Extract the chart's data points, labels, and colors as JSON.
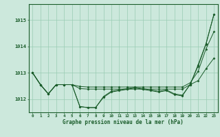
{
  "background_color": "#cce8dc",
  "plot_bg_color": "#cce8dc",
  "grid_color": "#99ccb3",
  "line_color": "#1a5c2a",
  "marker_color": "#1a5c2a",
  "xlabel": "Graphe pression niveau de la mer (hPa)",
  "ylim": [
    1011.5,
    1015.6
  ],
  "xlim": [
    -0.5,
    23.5
  ],
  "yticks": [
    1012,
    1013,
    1014,
    1015
  ],
  "xticks": [
    0,
    1,
    2,
    3,
    4,
    5,
    6,
    7,
    8,
    9,
    10,
    11,
    12,
    13,
    14,
    15,
    16,
    17,
    18,
    19,
    20,
    21,
    22,
    23
  ],
  "series": {
    "line1": [
      1013.0,
      1012.55,
      1012.2,
      1012.55,
      1012.55,
      1012.55,
      1011.72,
      1011.68,
      1011.68,
      1012.1,
      1012.3,
      1012.35,
      1012.4,
      1012.45,
      1012.4,
      1012.35,
      1012.3,
      1012.35,
      1012.2,
      1012.15,
      1012.55,
      1013.3,
      1014.1,
      1015.2
    ],
    "line2": [
      1013.0,
      1012.55,
      1012.2,
      1012.55,
      1012.55,
      1012.55,
      1012.4,
      1012.38,
      1012.38,
      1012.38,
      1012.38,
      1012.38,
      1012.38,
      1012.38,
      1012.38,
      1012.38,
      1012.38,
      1012.38,
      1012.38,
      1012.38,
      1012.55,
      1012.7,
      1013.15,
      1013.55
    ],
    "line3": [
      1013.0,
      1012.55,
      1012.2,
      1012.55,
      1012.55,
      1012.55,
      1012.48,
      1012.46,
      1012.46,
      1012.46,
      1012.46,
      1012.46,
      1012.46,
      1012.46,
      1012.46,
      1012.46,
      1012.46,
      1012.46,
      1012.46,
      1012.46,
      1012.62,
      1013.05,
      1013.9,
      1014.55
    ],
    "line4": [
      1013.0,
      1012.55,
      1012.2,
      1012.55,
      1012.55,
      1012.55,
      1011.72,
      1011.68,
      1011.68,
      1012.07,
      1012.27,
      1012.32,
      1012.37,
      1012.42,
      1012.37,
      1012.32,
      1012.27,
      1012.32,
      1012.17,
      1012.12,
      1012.57,
      1013.25,
      1014.08,
      1015.2
    ]
  }
}
